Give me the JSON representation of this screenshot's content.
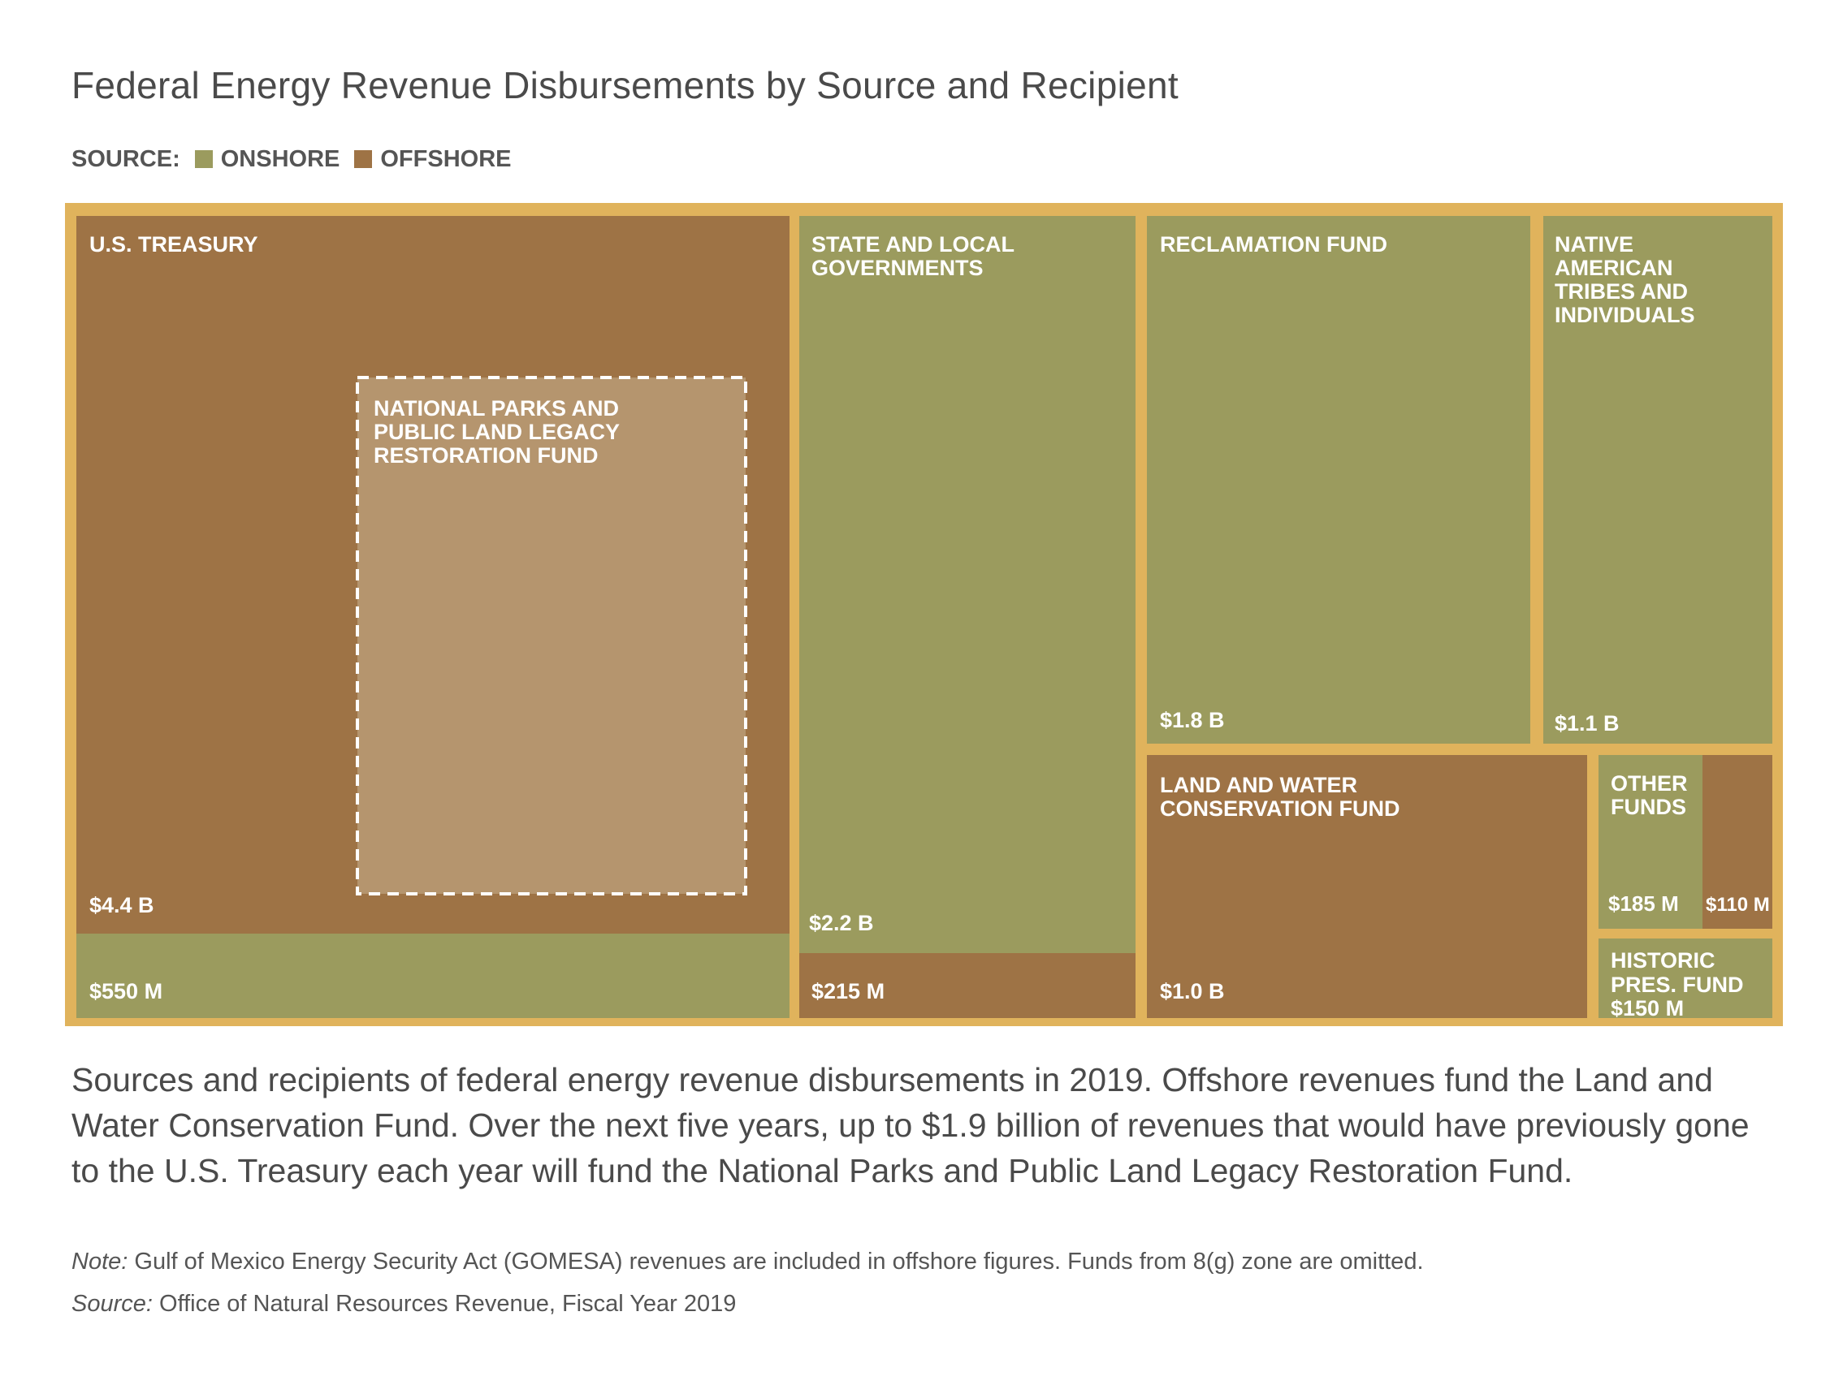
{
  "title": "Federal Energy Revenue Disbursements by Source and Recipient",
  "legend": {
    "label": "SOURCE:",
    "items": [
      {
        "name": "ONSHORE",
        "color": "#9b9b5e"
      },
      {
        "name": "OFFSHORE",
        "color": "#9e7345"
      }
    ]
  },
  "colors": {
    "border": "#e0b35c",
    "onshore": "#9b9b5e",
    "offshore": "#9e7345",
    "legacy_fund": "#b5956e"
  },
  "chart_data": {
    "type": "treemap",
    "title": "Federal Energy Revenue Disbursements by Source and Recipient",
    "recipients": [
      {
        "name": "U.S. TREASURY",
        "segments": [
          {
            "source": "offshore",
            "value_label": "$4.4 B",
            "value_millions": 4400
          },
          {
            "source": "onshore",
            "value_label": "$550 M",
            "value_millions": 550
          }
        ]
      },
      {
        "name": "STATE AND LOCAL GOVERNMENTS",
        "segments": [
          {
            "source": "onshore",
            "value_label": "$2.2 B",
            "value_millions": 2200
          },
          {
            "source": "offshore",
            "value_label": "$215 M",
            "value_millions": 215
          }
        ]
      },
      {
        "name": "RECLAMATION FUND",
        "segments": [
          {
            "source": "onshore",
            "value_label": "$1.8 B",
            "value_millions": 1800
          }
        ]
      },
      {
        "name": "NATIVE AMERICAN TRIBES AND INDIVIDUALS",
        "segments": [
          {
            "source": "onshore",
            "value_label": "$1.1 B",
            "value_millions": 1100
          }
        ]
      },
      {
        "name": "LAND AND WATER CONSERVATION FUND",
        "segments": [
          {
            "source": "offshore",
            "value_label": "$1.0 B",
            "value_millions": 1000
          }
        ]
      },
      {
        "name": "OTHER FUNDS",
        "segments": [
          {
            "source": "onshore",
            "value_label": "$185 M",
            "value_millions": 185
          },
          {
            "source": "offshore",
            "value_label": "$110 M",
            "value_millions": 110
          }
        ]
      },
      {
        "name": "HISTORIC PRES. FUND",
        "segments": [
          {
            "source": "onshore",
            "value_label": "$150 M",
            "value_millions": 150
          }
        ]
      }
    ],
    "overlay": {
      "name": "NATIONAL PARKS AND PUBLIC LAND LEGACY RESTORATION FUND",
      "within": "U.S. TREASURY",
      "style": "dashed"
    }
  },
  "labels": {
    "treasury": "U.S. TREASURY",
    "legacy": [
      "NATIONAL PARKS AND",
      "PUBLIC LAND LEGACY",
      "RESTORATION FUND"
    ],
    "state": [
      "STATE AND LOCAL",
      "GOVERNMENTS"
    ],
    "reclamation": "RECLAMATION FUND",
    "native": [
      "NATIVE",
      "AMERICAN",
      "TRIBES AND",
      "INDIVIDUALS"
    ],
    "lwcf": [
      "LAND AND WATER",
      "CONSERVATION FUND"
    ],
    "other": [
      "OTHER",
      "FUNDS"
    ],
    "historic": [
      "HISTORIC",
      "PRES. FUND"
    ],
    "values": {
      "treasury_off": "$4.4 B",
      "treasury_on": "$550 M",
      "state_on": "$2.2 B",
      "state_off": "$215 M",
      "reclamation": "$1.8 B",
      "native": "$1.1 B",
      "lwcf": "$1.0 B",
      "other_on": "$185 M",
      "other_off": "$110 M",
      "historic": "$150 M"
    }
  },
  "caption": "Sources and recipients of federal energy revenue disbursements in 2019. Offshore revenues fund the Land and Water Conservation Fund. Over the next five years, up to $1.9 billion of revenues that would have previously gone to the U.S. Treasury each year will fund the National Parks and Public Land Legacy Restoration Fund.",
  "note": {
    "label": "Note:",
    "text": " Gulf of Mexico Energy Security Act (GOMESA) revenues are included in offshore figures. Funds from 8(g) zone are omitted."
  },
  "source": {
    "label": "Source:",
    "text": " Office of Natural Resources Revenue, Fiscal Year 2019"
  }
}
